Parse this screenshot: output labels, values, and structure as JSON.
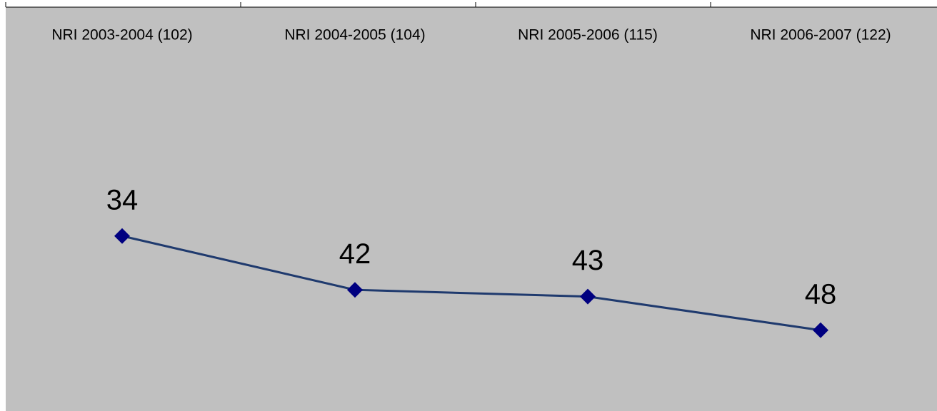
{
  "chart_data": {
    "type": "line",
    "categories": [
      "NRI 2003-2004 (102)",
      "NRI 2004-2005 (104)",
      "NRI 2005-2006 (115)",
      "NRI 2006-2007 (122)"
    ],
    "values": [
      34,
      42,
      43,
      48
    ],
    "color": "#1f3a6e",
    "marker_color": "#000080",
    "ylim": [
      0,
      60
    ],
    "y_reversed": true,
    "category_axis_position": "top"
  }
}
